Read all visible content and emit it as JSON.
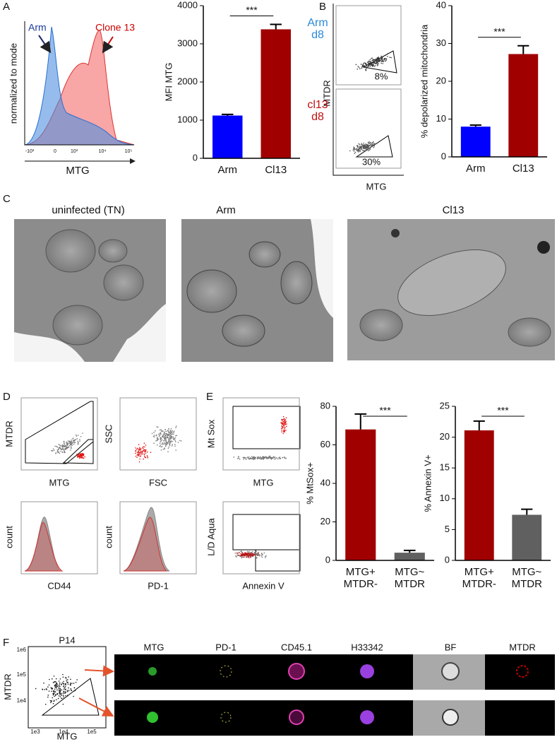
{
  "figure": {
    "panel_labels": [
      "A",
      "B",
      "C",
      "D",
      "E",
      "F"
    ],
    "A": {
      "legend": [
        "Arm",
        "Clone 13"
      ],
      "y_label": "normalized to mode",
      "x_label": "MTG",
      "x_ticks": [
        "-10³",
        "0",
        "10³",
        "10⁴",
        "10⁵"
      ]
    },
    "B": {
      "rows": [
        {
          "label": "Arm d8",
          "gate": "8%"
        },
        {
          "label": "cl13 d8",
          "gate": "30%"
        }
      ],
      "y_label": "MTDR",
      "x_label": "MTG"
    },
    "C": {
      "titles": [
        "uninfected (TN)",
        "Arm",
        "Cl13"
      ]
    },
    "D": {
      "plots": [
        {
          "y": "MTDR",
          "x": "MTG"
        },
        {
          "y": "SSC",
          "x": "FSC"
        },
        {
          "y": "count",
          "x": "CD44"
        },
        {
          "y": "count",
          "x": "PD-1"
        }
      ]
    },
    "E": {
      "plots": [
        {
          "y": "Mt Sox",
          "x": "MTG"
        },
        {
          "y": "L/D Aqua",
          "x": "Annexin V"
        }
      ]
    },
    "F": {
      "title": "P14",
      "y_label": "MTDR",
      "x_label": "MTG",
      "y_ticks": [
        "1e6",
        "1e5",
        "1e4"
      ],
      "x_ticks": [
        "1e3",
        "1e4",
        "1e5"
      ],
      "channels": [
        "MTG",
        "PD-1",
        "CD45.1",
        "H33342",
        "BF",
        "MTDR"
      ]
    }
  },
  "chart_data": [
    {
      "type": "bar",
      "ylabel": "MFI MTG",
      "categories": [
        "Arm",
        "Cl13"
      ],
      "values": [
        1120,
        3380
      ],
      "errors": [
        30,
        130
      ],
      "colors": [
        "#0000ff",
        "#a00000"
      ],
      "ylim": [
        0,
        4000
      ],
      "yticks": [
        0,
        1000,
        2000,
        3000,
        4000
      ],
      "annotation": "***"
    },
    {
      "type": "bar",
      "ylabel": "% depolarized mitochondria",
      "categories": [
        "Arm",
        "Cl13"
      ],
      "values": [
        8,
        27.2
      ],
      "errors": [
        0.4,
        2.2
      ],
      "colors": [
        "#0000ff",
        "#a00000"
      ],
      "ylim": [
        0,
        40
      ],
      "yticks": [
        0,
        10,
        20,
        30,
        40
      ],
      "annotation": "***"
    },
    {
      "type": "bar",
      "ylabel": "% MtSox+",
      "categories": [
        "MTG+ MTDR-",
        "MTG~ MTDR"
      ],
      "values": [
        68,
        4
      ],
      "errors": [
        8,
        1.2
      ],
      "colors": [
        "#a00000",
        "#606060"
      ],
      "ylim": [
        0,
        80
      ],
      "yticks": [
        0,
        20,
        40,
        60,
        80
      ],
      "annotation": "***"
    },
    {
      "type": "bar",
      "ylabel": "% Annexin V+",
      "categories": [
        "MTG+ MTDR-",
        "MTG~ MTDR"
      ],
      "values": [
        21.1,
        7.4
      ],
      "errors": [
        1.5,
        0.9
      ],
      "colors": [
        "#a00000",
        "#606060"
      ],
      "ylim": [
        0,
        25
      ],
      "yticks": [
        0,
        5,
        10,
        15,
        20,
        25
      ],
      "annotation": "***"
    }
  ]
}
